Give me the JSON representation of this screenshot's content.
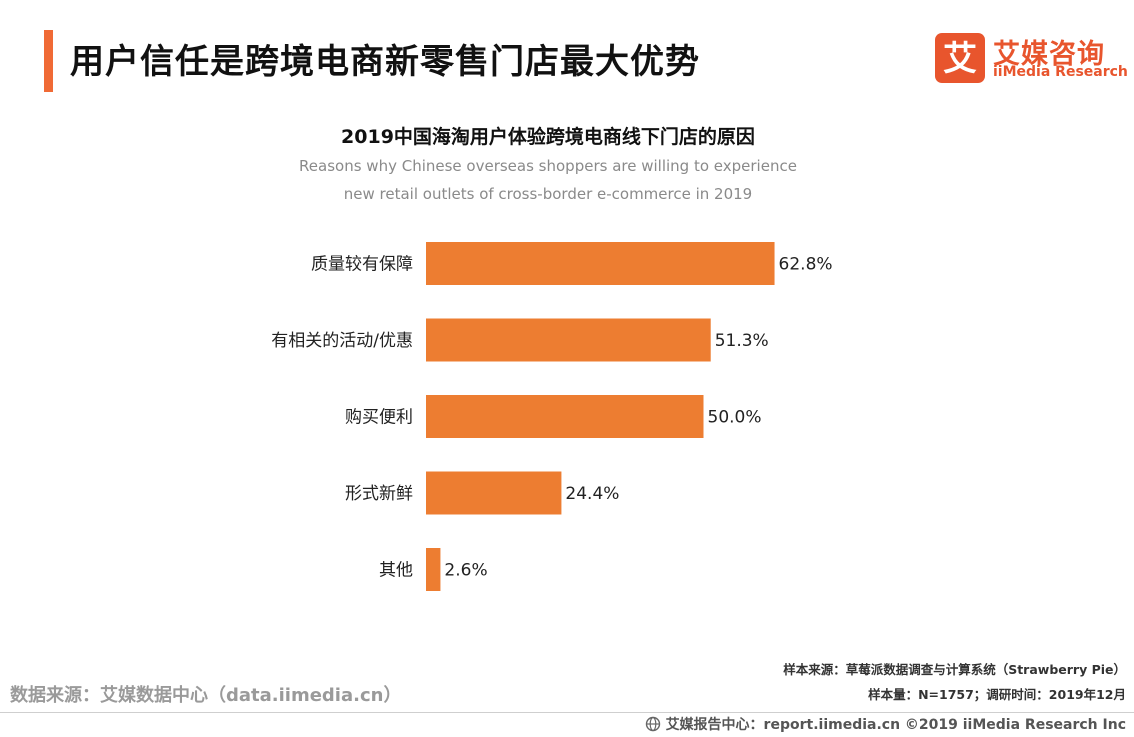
{
  "header": {
    "title": "用户信任是跨境电商新零售门店最大优势",
    "accent_color": "#f06a35"
  },
  "logo": {
    "icon": "ai-character-logo",
    "mark": "艾",
    "cn": "艾媒咨询",
    "en": "iiMedia Research",
    "color": "#e8552d"
  },
  "chart_data": {
    "type": "bar",
    "orientation": "horizontal",
    "title": "2019中国海淘用户体验跨境电商线下门店的原因",
    "subtitle": [
      "Reasons why Chinese overseas shoppers are willing to experience",
      "new retail outlets of cross-border e-commerce in 2019"
    ],
    "categories": [
      "质量较有保障",
      "有相关的活动/优惠",
      "购买便利",
      "形式新鲜",
      "其他"
    ],
    "values": [
      62.8,
      51.3,
      50.0,
      24.4,
      2.6
    ],
    "value_labels": [
      "62.8%",
      "51.3%",
      "50.0%",
      "24.4%",
      "2.6%"
    ],
    "unit": "%",
    "xlim": [
      0,
      100
    ],
    "grid": false,
    "legend": "none",
    "bar_color": "#ed7d31"
  },
  "footer": {
    "source_left": "数据来源：艾媒数据中心（data.iimedia.cn）",
    "sample_source": "样本来源：草莓派数据调查与计算系统（Strawberry Pie）",
    "sample_size": "样本量：N=1757；调研时间：2019年12月",
    "report_center": "艾媒报告中心：report.iimedia.cn  ©2019  iiMedia Research  Inc",
    "globe_icon": "globe-icon"
  }
}
